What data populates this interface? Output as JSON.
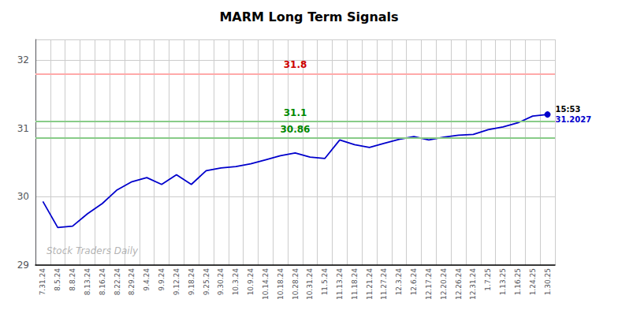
{
  "chart_data": {
    "type": "line",
    "title": "MARM Long Term Signals",
    "categories": [
      "7.31.24",
      "8.5.24",
      "8.8.24",
      "8.13.24",
      "8.16.24",
      "8.22.24",
      "8.29.24",
      "9.4.24",
      "9.9.24",
      "9.12.24",
      "9.18.24",
      "9.25.24",
      "9.30.24",
      "10.3.24",
      "10.9.24",
      "10.14.24",
      "10.18.24",
      "10.28.24",
      "10.31.24",
      "11.5.24",
      "11.13.24",
      "11.18.24",
      "11.21.24",
      "11.27.24",
      "12.3.24",
      "12.6.24",
      "12.17.24",
      "12.20.24",
      "12.26.24",
      "12.31.24",
      "1.7.25",
      "1.13.25",
      "1.16.25",
      "1.24.25",
      "1.30.25"
    ],
    "values": [
      29.93,
      29.55,
      29.57,
      29.75,
      29.9,
      30.1,
      30.22,
      30.28,
      30.18,
      30.32,
      30.18,
      30.38,
      30.42,
      30.44,
      30.48,
      30.54,
      30.6,
      30.64,
      30.58,
      30.56,
      30.83,
      30.76,
      30.72,
      30.78,
      30.84,
      30.88,
      30.83,
      30.87,
      30.9,
      30.91,
      30.98,
      31.02,
      31.08,
      31.18,
      31.2027
    ],
    "color": "#0000cc",
    "ylim": [
      29.0,
      32.3
    ],
    "yticks": [
      29,
      30,
      31,
      32
    ],
    "grid": true,
    "reference_lines": [
      {
        "value": 31.8,
        "label": "31.8",
        "color": "#ffaaaa",
        "label_color": "#cc0000"
      },
      {
        "value": 31.1,
        "label": "31.1",
        "color": "#88cc88",
        "label_color": "#008800"
      },
      {
        "value": 30.86,
        "label": "30.86",
        "color": "#88cc88",
        "label_color": "#008800"
      }
    ],
    "last_point": {
      "value": 31.2027,
      "time_label": "15:53",
      "value_label": "31.2027"
    },
    "watermark": "Stock Traders Daily",
    "watermark_color": "#aaaaaa"
  }
}
